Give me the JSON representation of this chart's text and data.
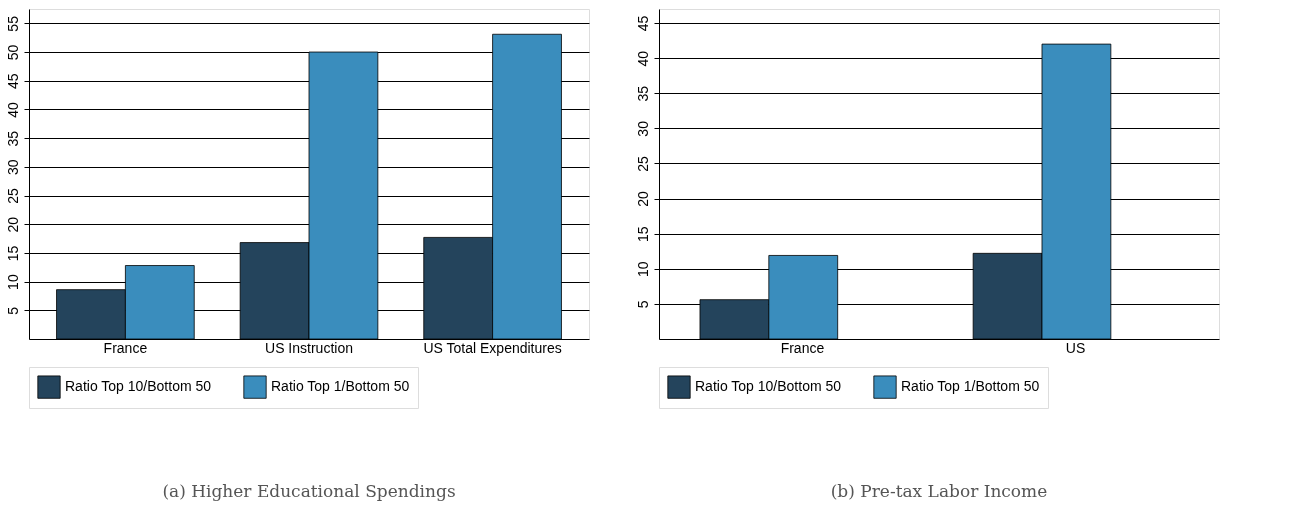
{
  "chart_data": [
    {
      "type": "bar",
      "title": "(a) Higher Educational Spendings",
      "categories": [
        "France",
        "US Instruction",
        "US Total Expenditures"
      ],
      "series": [
        {
          "name": "Ratio Top 10/Bottom 50",
          "color": "#24445c",
          "values": [
            8.6,
            16.8,
            17.7
          ]
        },
        {
          "name": "Ratio Top 1/Bottom 50",
          "color": "#3a8dbd",
          "values": [
            12.8,
            50,
            53.1
          ]
        }
      ],
      "ylim": [
        0,
        57.5
      ],
      "yticks": [
        5,
        10,
        15,
        20,
        25,
        30,
        35,
        40,
        45,
        50,
        55
      ],
      "grid": "y",
      "legend": "bottom"
    },
    {
      "type": "bar",
      "title": "(b) Pre-tax Labor Income",
      "categories": [
        "France",
        "US"
      ],
      "series": [
        {
          "name": "Ratio Top 10/Bottom 50",
          "color": "#24445c",
          "values": [
            5.6,
            12.2
          ]
        },
        {
          "name": "Ratio Top 1/Bottom 50",
          "color": "#3a8dbd",
          "values": [
            11.9,
            42
          ]
        }
      ],
      "ylim": [
        0,
        47
      ],
      "yticks": [
        5,
        10,
        15,
        20,
        25,
        30,
        35,
        40,
        45
      ],
      "grid": "y",
      "legend": "bottom"
    }
  ]
}
